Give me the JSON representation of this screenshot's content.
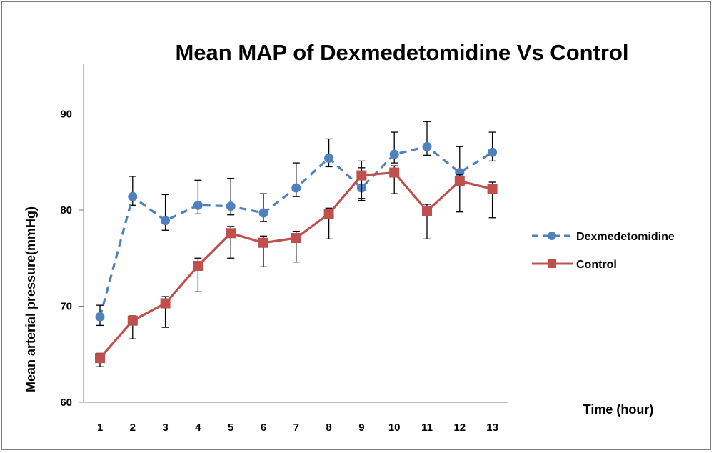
{
  "chart_data": {
    "type": "line",
    "title": "Mean MAP of Dexmedetomidine Vs Control",
    "xlabel": "Time (hour)",
    "ylabel": "Mean arterial pressure(mmHg)",
    "x": [
      1,
      2,
      3,
      4,
      5,
      6,
      7,
      8,
      9,
      10,
      11,
      12,
      13
    ],
    "x_tick_labels": [
      "1",
      "2",
      "3",
      "4",
      "5",
      "6",
      "7",
      "8",
      "9",
      "10",
      "11",
      "12",
      "13"
    ],
    "y_ticks": [
      60,
      70,
      80,
      90
    ],
    "y_tick_labels": [
      "60",
      "70",
      "80",
      "90"
    ],
    "ylim": [
      60,
      95
    ],
    "grid": false,
    "legend_position": "right",
    "series": [
      {
        "name": "Dexmedetomidine",
        "color": "#4f81bd",
        "line_style": "dashed",
        "marker": "circle",
        "values": [
          68.9,
          81.4,
          78.9,
          80.5,
          80.4,
          79.7,
          82.3,
          85.4,
          82.3,
          85.8,
          86.6,
          83.9,
          86.0
        ],
        "error_upper": [
          70.1,
          83.5,
          81.6,
          83.1,
          83.3,
          81.7,
          84.9,
          87.4,
          85.1,
          88.1,
          89.2,
          86.6,
          88.1
        ],
        "error_lower": [
          68.0,
          80.5,
          77.9,
          79.6,
          79.5,
          78.8,
          81.4,
          84.5,
          81.0,
          84.9,
          85.7,
          82.9,
          85.1
        ]
      },
      {
        "name": "Control",
        "color": "#c0504d",
        "line_style": "solid",
        "marker": "square",
        "values": [
          64.6,
          68.5,
          70.3,
          74.2,
          77.6,
          76.6,
          77.1,
          79.6,
          83.6,
          83.9,
          79.9,
          83.0,
          82.2
        ],
        "error_upper": [
          65.1,
          69.0,
          71.0,
          75.0,
          78.3,
          77.3,
          77.8,
          80.2,
          84.4,
          84.6,
          80.6,
          83.7,
          82.9
        ],
        "error_lower": [
          63.7,
          66.6,
          67.8,
          71.5,
          75.0,
          74.1,
          74.6,
          77.0,
          81.2,
          81.7,
          77.0,
          79.8,
          79.2
        ]
      }
    ]
  }
}
